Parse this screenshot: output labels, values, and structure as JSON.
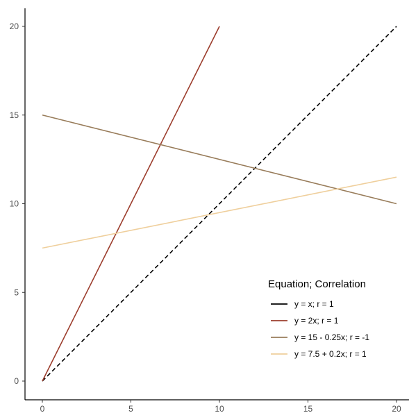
{
  "chart_data": {
    "type": "line",
    "xlim": [
      0,
      20
    ],
    "ylim": [
      0,
      20
    ],
    "x_ticks": [
      0,
      5,
      10,
      15,
      20
    ],
    "y_ticks": [
      0,
      5,
      10,
      15,
      20
    ],
    "x_tick_labels": [
      "0",
      "5",
      "10",
      "15",
      "20"
    ],
    "y_tick_labels": [
      "0",
      "5",
      "10",
      "15",
      "20"
    ],
    "grid": false,
    "legend": {
      "title": "Equation; Correlation",
      "placement": "bottom-right"
    },
    "series": [
      {
        "name": "y = x; r = 1",
        "color": "#000000",
        "dash": "dashed",
        "x": [
          0,
          20
        ],
        "y": [
          0,
          20
        ]
      },
      {
        "name": "y = 2x; r = 1",
        "color": "#9c3d2d",
        "dash": "solid",
        "x": [
          0,
          10
        ],
        "y": [
          0,
          20
        ]
      },
      {
        "name": "y = 15 - 0.25x; r = -1",
        "color": "#987c5a",
        "dash": "solid",
        "x": [
          0,
          20
        ],
        "y": [
          15,
          10
        ]
      },
      {
        "name": "y = 7.5 + 0.2x; r = 1",
        "color": "#efcf9c",
        "dash": "solid",
        "x": [
          0,
          20
        ],
        "y": [
          7.5,
          11.5
        ]
      }
    ]
  }
}
